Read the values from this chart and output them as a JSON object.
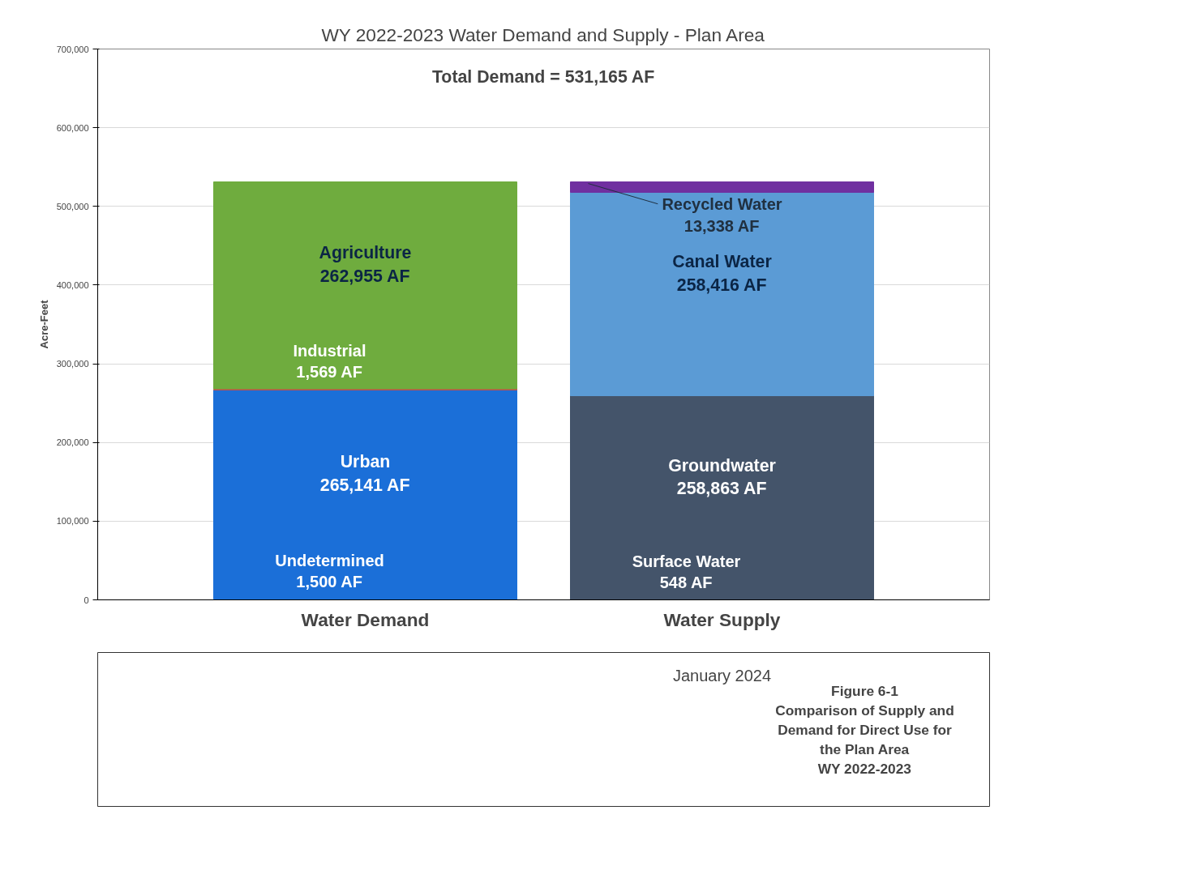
{
  "chart_data": {
    "type": "bar",
    "stacked": true,
    "title": "WY 2022-2023 Water Demand and Supply - Plan Area",
    "ylabel": "Acre-Feet",
    "categories": [
      "Water Demand",
      "Water Supply"
    ],
    "series": [
      {
        "name": "Undetermined",
        "color": "#1b6fd8",
        "values": [
          1500,
          null
        ],
        "value_labels": [
          "1,500 AF",
          null
        ]
      },
      {
        "name": "Urban",
        "color": "#1b6fd8",
        "values": [
          265141,
          null
        ],
        "value_labels": [
          "265,141 AF",
          null
        ]
      },
      {
        "name": "Industrial",
        "color": "#c0504d",
        "values": [
          1569,
          null
        ],
        "value_labels": [
          "1,569 AF",
          null
        ]
      },
      {
        "name": "Agriculture",
        "color": "#6fac3e",
        "values": [
          262955,
          null
        ],
        "value_labels": [
          "262,955 AF",
          null
        ]
      },
      {
        "name": "Surface Water",
        "color": "#44546a",
        "values": [
          null,
          548
        ],
        "value_labels": [
          null,
          "548 AF"
        ]
      },
      {
        "name": "Groundwater",
        "color": "#44546a",
        "values": [
          null,
          258863
        ],
        "value_labels": [
          null,
          "258,863 AF"
        ]
      },
      {
        "name": "Canal Water",
        "color": "#5b9bd5",
        "values": [
          null,
          258416
        ],
        "value_labels": [
          null,
          "258,416 AF"
        ]
      },
      {
        "name": "Recycled Water",
        "color": "#7030a0",
        "values": [
          null,
          13338
        ],
        "value_labels": [
          null,
          "13,338 AF"
        ]
      }
    ],
    "ylim": [
      0,
      700000
    ],
    "yticks": [
      0,
      {
        "value": 100000,
        "label": "100,000"
      },
      {
        "value": 200000,
        "label": "200,000"
      },
      {
        "value": 300000,
        "label": "300,000"
      },
      {
        "value": 400000,
        "label": "400,000"
      },
      {
        "value": 500000,
        "label": "500,000"
      },
      {
        "value": 600000,
        "label": "600,000"
      },
      {
        "value": 700000,
        "label": "700,000"
      }
    ],
    "grid": "y",
    "legend": false,
    "annotations": [
      "Total Demand = 531,165 AF",
      "January 2024",
      "Figure 6-1\nComparison of Supply and\nDemand for Direct Use for\nthe Plan Area\nWY 2022-2023"
    ]
  }
}
